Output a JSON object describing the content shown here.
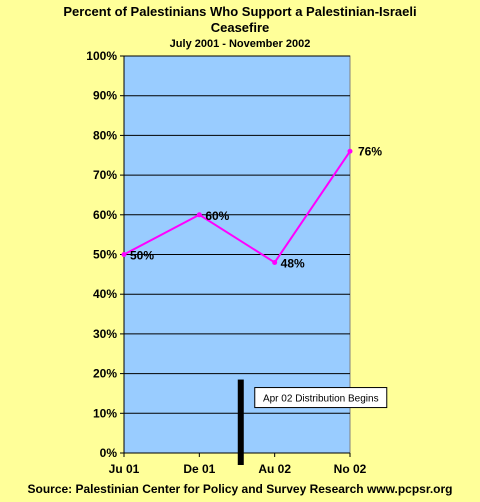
{
  "chart_data": {
    "type": "line",
    "title_line1": "Percent of Palestinians Who Support a Palestinian-Israeli",
    "title_line2": "Ceasefire",
    "subtitle": "July 2001 - November 2002",
    "source": "Source: Palestinian Center for Policy and Survey Research www.pcpsr.org",
    "categories": [
      "Ju 01",
      "De 01",
      "Au 02",
      "No 02"
    ],
    "series": [
      {
        "values": [
          50,
          60,
          48,
          76
        ],
        "labels": [
          "50%",
          "60%",
          "48%",
          "76%"
        ],
        "color": "#FF00FF"
      }
    ],
    "ylim": [
      0,
      100
    ],
    "yticks": [
      0,
      10,
      20,
      30,
      40,
      50,
      60,
      70,
      80,
      90,
      100
    ],
    "ytick_labels": [
      "0%",
      "10%",
      "20%",
      "30%",
      "40%",
      "50%",
      "60%",
      "70%",
      "80%",
      "90%",
      "100%"
    ],
    "grid": true,
    "plot_background": "#99CCFF",
    "page_background": "#FFFF99",
    "annotation": {
      "text": "Apr 02 Distribution Begins",
      "x_position": 1.55,
      "bar_top_value": 18.5
    }
  }
}
